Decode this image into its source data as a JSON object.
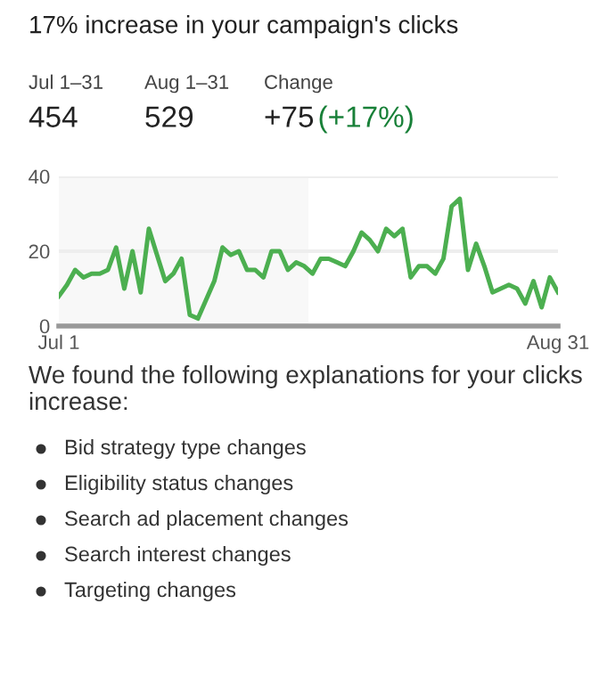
{
  "chart_data": {
    "type": "line",
    "title": "17% increase in your campaign's clicks",
    "categories": [
      "Jul 1",
      null,
      null,
      null,
      null,
      null,
      null,
      null,
      null,
      null,
      null,
      null,
      null,
      null,
      null,
      null,
      null,
      null,
      null,
      null,
      null,
      null,
      null,
      null,
      null,
      null,
      null,
      null,
      null,
      null,
      null,
      null,
      null,
      null,
      null,
      null,
      null,
      null,
      null,
      null,
      null,
      null,
      null,
      null,
      null,
      null,
      null,
      null,
      null,
      null,
      null,
      null,
      null,
      null,
      null,
      null,
      null,
      null,
      null,
      null,
      null,
      "Aug 31"
    ],
    "series": [
      {
        "color": "#4caf50",
        "values": [
          8,
          11,
          15,
          13,
          14,
          14,
          15,
          21,
          10,
          20,
          9,
          26,
          19,
          12,
          14,
          18,
          3,
          2,
          7,
          12,
          21,
          19,
          20,
          15,
          15,
          13,
          20,
          20,
          15,
          17,
          16,
          14,
          18,
          18,
          17,
          16,
          20,
          25,
          23,
          20,
          26,
          24,
          26,
          13,
          16,
          16,
          14,
          18,
          32,
          34,
          15,
          22,
          16,
          9,
          10,
          11,
          10,
          6,
          12,
          5,
          13,
          9
        ]
      }
    ],
    "ylim": [
      0,
      40
    ],
    "yticks": [
      0,
      20,
      40
    ],
    "grid": "y",
    "legend": false,
    "marker": "none",
    "line_style": "solid",
    "annotations": [
      "Jul 1–31",
      "454",
      "Aug 1–31",
      "529",
      "Change",
      "+75",
      "(+17%)",
      "We found the following explanations for your clicks increase:",
      "Bid strategy type changes",
      "Eligibility status changes",
      "Search ad placement changes",
      "Search interest changes",
      "Targeting changes"
    ]
  }
}
